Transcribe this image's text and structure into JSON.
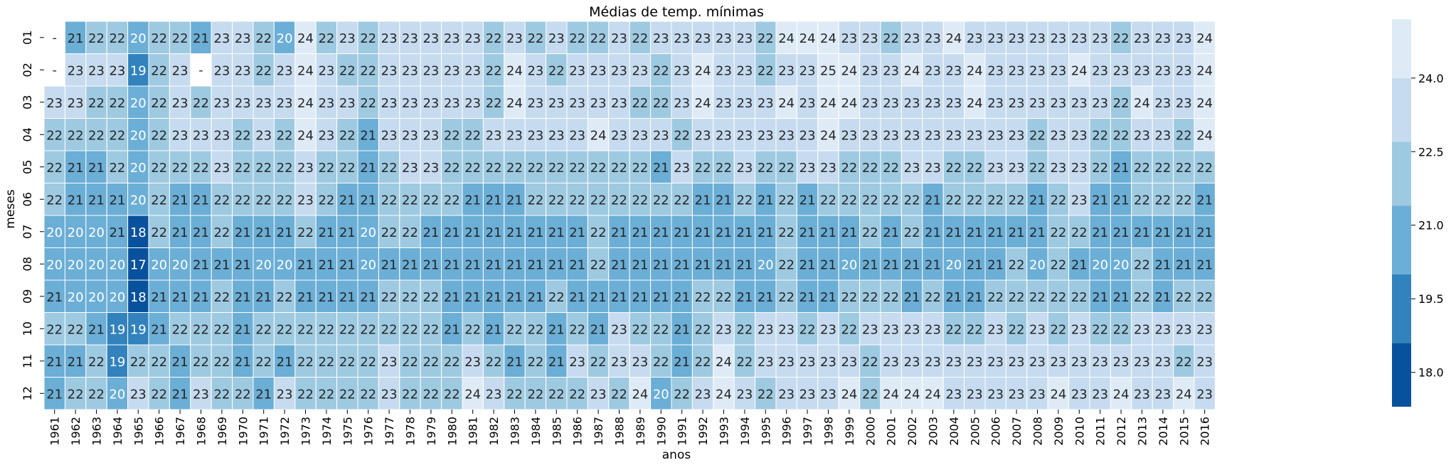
{
  "chart_data": {
    "type": "heatmap",
    "title": "Médias de temp. mínimas",
    "xlabel": "anos",
    "ylabel": "meses",
    "x": [
      "1961",
      "1962",
      "1963",
      "1964",
      "1965",
      "1966",
      "1967",
      "1968",
      "1969",
      "1970",
      "1971",
      "1972",
      "1973",
      "1974",
      "1975",
      "1976",
      "1977",
      "1978",
      "1979",
      "1980",
      "1981",
      "1982",
      "1983",
      "1984",
      "1985",
      "1986",
      "1987",
      "1988",
      "1989",
      "1990",
      "1991",
      "1992",
      "1993",
      "1994",
      "1995",
      "1996",
      "1997",
      "1998",
      "1999",
      "2000",
      "2001",
      "2002",
      "2003",
      "2004",
      "2005",
      "2006",
      "2007",
      "2008",
      "2009",
      "2010",
      "2011",
      "2012",
      "2013",
      "2014",
      "2015",
      "2016"
    ],
    "y": [
      "01",
      "02",
      "03",
      "04",
      "05",
      "06",
      "07",
      "08",
      "09",
      "10",
      "11",
      "12"
    ],
    "values": [
      [
        null,
        21,
        22,
        22,
        20,
        22,
        22,
        21,
        23,
        23,
        22,
        20,
        24,
        22,
        23,
        22,
        23,
        23,
        23,
        23,
        23,
        22,
        23,
        22,
        23,
        22,
        22,
        23,
        22,
        23,
        23,
        23,
        23,
        23,
        22,
        24,
        24,
        24,
        23,
        23,
        22,
        23,
        23,
        24,
        23,
        23,
        23,
        23,
        23,
        23,
        23,
        22,
        23,
        23,
        23,
        24
      ],
      [
        null,
        23,
        23,
        23,
        19,
        22,
        23,
        null,
        23,
        23,
        22,
        23,
        24,
        23,
        22,
        22,
        23,
        23,
        23,
        23,
        23,
        22,
        24,
        23,
        22,
        23,
        23,
        23,
        23,
        22,
        23,
        24,
        23,
        23,
        22,
        23,
        23,
        25,
        24,
        23,
        23,
        24,
        23,
        23,
        24,
        23,
        23,
        23,
        23,
        24,
        23,
        23,
        23,
        23,
        23,
        24
      ],
      [
        23,
        23,
        22,
        22,
        20,
        22,
        23,
        22,
        23,
        23,
        23,
        23,
        24,
        23,
        23,
        22,
        23,
        23,
        23,
        23,
        23,
        22,
        24,
        23,
        23,
        23,
        23,
        23,
        22,
        22,
        23,
        24,
        23,
        23,
        23,
        24,
        23,
        24,
        24,
        23,
        23,
        23,
        23,
        23,
        24,
        23,
        23,
        23,
        23,
        23,
        23,
        22,
        24,
        23,
        23,
        24
      ],
      [
        22,
        22,
        22,
        22,
        20,
        22,
        23,
        23,
        23,
        22,
        23,
        22,
        24,
        23,
        22,
        21,
        23,
        23,
        23,
        22,
        22,
        23,
        23,
        23,
        23,
        23,
        24,
        23,
        23,
        23,
        22,
        23,
        23,
        23,
        23,
        23,
        23,
        24,
        23,
        23,
        23,
        23,
        23,
        23,
        23,
        23,
        23,
        22,
        23,
        23,
        22,
        22,
        23,
        23,
        22,
        24
      ],
      [
        22,
        21,
        21,
        22,
        20,
        22,
        22,
        22,
        23,
        22,
        22,
        22,
        23,
        22,
        22,
        21,
        22,
        23,
        23,
        22,
        22,
        22,
        22,
        22,
        22,
        22,
        22,
        22,
        22,
        21,
        23,
        22,
        22,
        23,
        22,
        22,
        23,
        23,
        22,
        22,
        22,
        23,
        23,
        22,
        22,
        23,
        23,
        22,
        23,
        23,
        22,
        21,
        22,
        22,
        22,
        22
      ],
      [
        22,
        21,
        21,
        21,
        20,
        22,
        21,
        21,
        22,
        22,
        22,
        22,
        23,
        22,
        21,
        21,
        22,
        22,
        22,
        22,
        21,
        21,
        21,
        22,
        22,
        22,
        22,
        22,
        22,
        22,
        22,
        21,
        21,
        22,
        21,
        22,
        21,
        22,
        22,
        22,
        22,
        22,
        21,
        22,
        22,
        22,
        22,
        21,
        22,
        23,
        21,
        21,
        22,
        22,
        22,
        21
      ],
      [
        20,
        20,
        20,
        21,
        18,
        22,
        21,
        21,
        22,
        21,
        21,
        21,
        22,
        21,
        21,
        20,
        22,
        22,
        21,
        21,
        21,
        21,
        21,
        21,
        21,
        21,
        22,
        21,
        21,
        21,
        21,
        21,
        21,
        21,
        21,
        22,
        21,
        21,
        21,
        22,
        21,
        22,
        21,
        21,
        21,
        21,
        21,
        21,
        22,
        22,
        21,
        21,
        21,
        21,
        21,
        21
      ],
      [
        20,
        20,
        20,
        20,
        17,
        20,
        20,
        21,
        21,
        21,
        20,
        20,
        21,
        21,
        21,
        20,
        21,
        21,
        21,
        21,
        21,
        21,
        21,
        21,
        21,
        21,
        22,
        21,
        21,
        21,
        21,
        21,
        21,
        21,
        20,
        22,
        21,
        21,
        20,
        21,
        21,
        21,
        21,
        20,
        21,
        21,
        22,
        20,
        22,
        21,
        20,
        20,
        22,
        21,
        21,
        21
      ],
      [
        21,
        20,
        20,
        20,
        18,
        21,
        21,
        21,
        22,
        21,
        21,
        22,
        21,
        21,
        21,
        21,
        22,
        22,
        22,
        21,
        21,
        21,
        21,
        21,
        22,
        21,
        21,
        21,
        21,
        21,
        21,
        22,
        22,
        21,
        21,
        22,
        21,
        21,
        22,
        22,
        22,
        21,
        22,
        21,
        21,
        22,
        22,
        22,
        22,
        22,
        21,
        21,
        22,
        21,
        22,
        22
      ],
      [
        22,
        22,
        21,
        19,
        19,
        21,
        22,
        22,
        22,
        21,
        22,
        22,
        22,
        22,
        22,
        22,
        22,
        22,
        22,
        21,
        22,
        21,
        22,
        22,
        21,
        22,
        21,
        23,
        22,
        22,
        21,
        22,
        23,
        22,
        23,
        23,
        22,
        23,
        22,
        23,
        23,
        23,
        23,
        22,
        22,
        23,
        22,
        23,
        22,
        23,
        22,
        22,
        23,
        23,
        23,
        23
      ],
      [
        21,
        21,
        22,
        19,
        22,
        22,
        21,
        22,
        22,
        21,
        22,
        21,
        22,
        22,
        22,
        22,
        23,
        22,
        22,
        22,
        23,
        22,
        21,
        22,
        21,
        23,
        22,
        23,
        23,
        22,
        21,
        22,
        24,
        22,
        23,
        23,
        23,
        23,
        23,
        22,
        23,
        23,
        23,
        23,
        23,
        23,
        23,
        23,
        23,
        23,
        23,
        23,
        23,
        23,
        22,
        23
      ],
      [
        21,
        22,
        22,
        20,
        23,
        22,
        21,
        23,
        22,
        22,
        21,
        23,
        22,
        22,
        22,
        22,
        23,
        22,
        22,
        22,
        24,
        23,
        22,
        22,
        22,
        22,
        23,
        22,
        24,
        20,
        22,
        23,
        24,
        23,
        22,
        23,
        23,
        23,
        24,
        22,
        24,
        24,
        24,
        23,
        23,
        23,
        23,
        23,
        24,
        23,
        23,
        24,
        23,
        23,
        24,
        23
      ]
    ],
    "colorbar": {
      "ticks": [
        18.0,
        19.5,
        21.0,
        22.5,
        24.0
      ],
      "ticklabels": [
        "18.0",
        "19.5",
        "21.0",
        "22.5",
        "24.0"
      ]
    },
    "colors": [
      "#08519c",
      "#3182bd",
      "#6baed6",
      "#9ecae1",
      "#c6dbef",
      "#deebf7"
    ],
    "grid": false,
    "legend": "colorbar-right"
  }
}
